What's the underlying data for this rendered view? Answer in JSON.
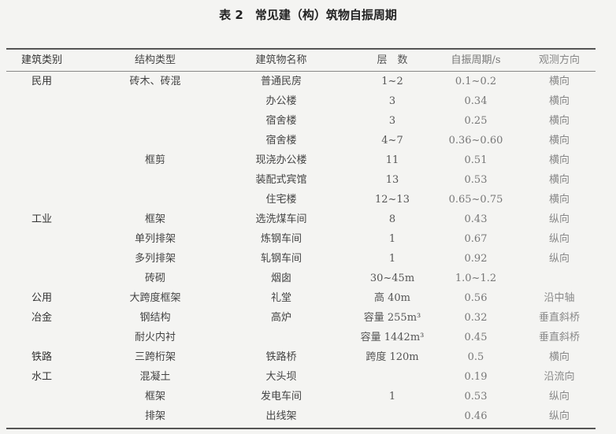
{
  "title": "表 2　常见建（构）筑物自振周期",
  "columns": [
    "建筑类别",
    "结构类型",
    "建筑物名称",
    "层　数",
    "自振周期/s",
    "观测方向"
  ],
  "rows": [
    [
      "民用",
      "砖木、砖混",
      "普通民房",
      "1~2",
      "0.1~0.2",
      "横向"
    ],
    [
      "",
      "",
      "办公楼",
      "3",
      "0.34",
      "横向"
    ],
    [
      "",
      "",
      "宿舍楼",
      "3",
      "0.25",
      "横向"
    ],
    [
      "",
      "",
      "宿舍楼",
      "4~7",
      "0.36~0.60",
      "横向"
    ],
    [
      "",
      "框剪",
      "现浇办公楼",
      "11",
      "0.51",
      "横向"
    ],
    [
      "",
      "",
      "装配式宾馆",
      "13",
      "0.53",
      "横向"
    ],
    [
      "",
      "",
      "住宅楼",
      "12~13",
      "0.65~0.75",
      "横向"
    ],
    [
      "工业",
      "框架",
      "选洗煤车间",
      "8",
      "0.43",
      "纵向"
    ],
    [
      "",
      "单列排架",
      "炼钢车间",
      "1",
      "0.67",
      "纵向"
    ],
    [
      "",
      "多列排架",
      "轧钢车间",
      "1",
      "0.92",
      "纵向"
    ],
    [
      "",
      "砖砌",
      "烟囱",
      "30~45m",
      "1.0~1.2",
      ""
    ],
    [
      "公用",
      "大跨度框架",
      "礼堂",
      "高 40m",
      "0.56",
      "沿中轴"
    ],
    [
      "冶金",
      "钢结构",
      "高炉",
      "容量 255m³",
      "0.32",
      "垂直斜桥"
    ],
    [
      "",
      "耐火内衬",
      "",
      "容量 1442m³",
      "0.45",
      "垂直斜桥"
    ],
    [
      "铁路",
      "三跨桁架",
      "铁路桥",
      "跨度 120m",
      "0.5",
      "横向"
    ],
    [
      "水工",
      "混凝土",
      "大头坝",
      "",
      "0.19",
      "沿流向"
    ],
    [
      "",
      "框架",
      "发电车间",
      "1",
      "0.53",
      "纵向"
    ],
    [
      "",
      "排架",
      "出线架",
      "",
      "0.46",
      "纵向"
    ]
  ]
}
